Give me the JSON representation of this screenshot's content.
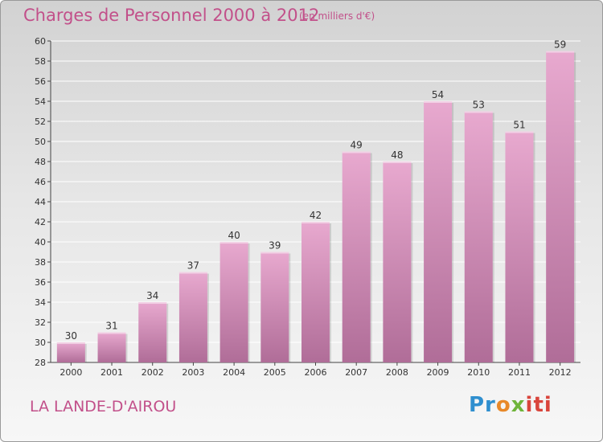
{
  "header": {
    "title": "Charges de Personnel 2000 à 2012",
    "subtitle": "(en milliers d'€)"
  },
  "footer": {
    "town": "LA LANDE-D'AIROU",
    "logo_parts": [
      "Pr",
      "o",
      "x",
      "iti"
    ]
  },
  "colors": {
    "title": "#c2508a",
    "bar_top": "#e8a9cf",
    "bar_bottom": "#b06d98",
    "grid": "#ffffff"
  },
  "chart_data": {
    "type": "bar",
    "title": "Charges de Personnel 2000 à 2012",
    "subtitle": "(en milliers d'€)",
    "categories": [
      "2000",
      "2001",
      "2002",
      "2003",
      "2004",
      "2005",
      "2006",
      "2007",
      "2008",
      "2009",
      "2010",
      "2011",
      "2012"
    ],
    "values": [
      30,
      31,
      34,
      37,
      40,
      39,
      42,
      49,
      48,
      54,
      53,
      51,
      59
    ],
    "ylim": [
      28,
      60
    ],
    "yticks": [
      28,
      30,
      32,
      34,
      36,
      38,
      40,
      42,
      44,
      46,
      48,
      50,
      52,
      54,
      56,
      58,
      60
    ],
    "grid": true,
    "legend": "none"
  }
}
